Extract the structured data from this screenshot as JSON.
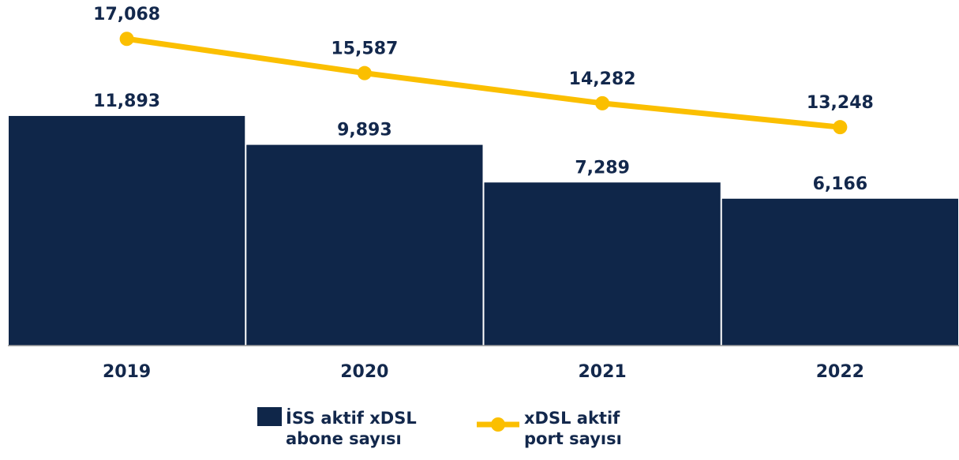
{
  "chart_data": {
    "type": "bar_line",
    "categories": [
      "2019",
      "2020",
      "2021",
      "2022"
    ],
    "series": [
      {
        "name": "İSS aktif xDSL abone sayısı",
        "type": "bar",
        "color": "#0f2649",
        "values": [
          11893,
          9893,
          7289,
          6166
        ],
        "value_labels": [
          "11,893",
          "9,893",
          "7,289",
          "6,166"
        ]
      },
      {
        "name": "xDSL aktif port sayısı",
        "type": "line",
        "color": "#fbbf00",
        "axis": "y2",
        "values": [
          17068,
          15587,
          14282,
          13248
        ],
        "value_labels": [
          "17,068",
          "15,587",
          "14,282",
          "13,248"
        ]
      }
    ],
    "ylim": [
      -4000,
      12000
    ],
    "y2lim": [
      3800,
      13800
    ],
    "legend": "bottom"
  }
}
